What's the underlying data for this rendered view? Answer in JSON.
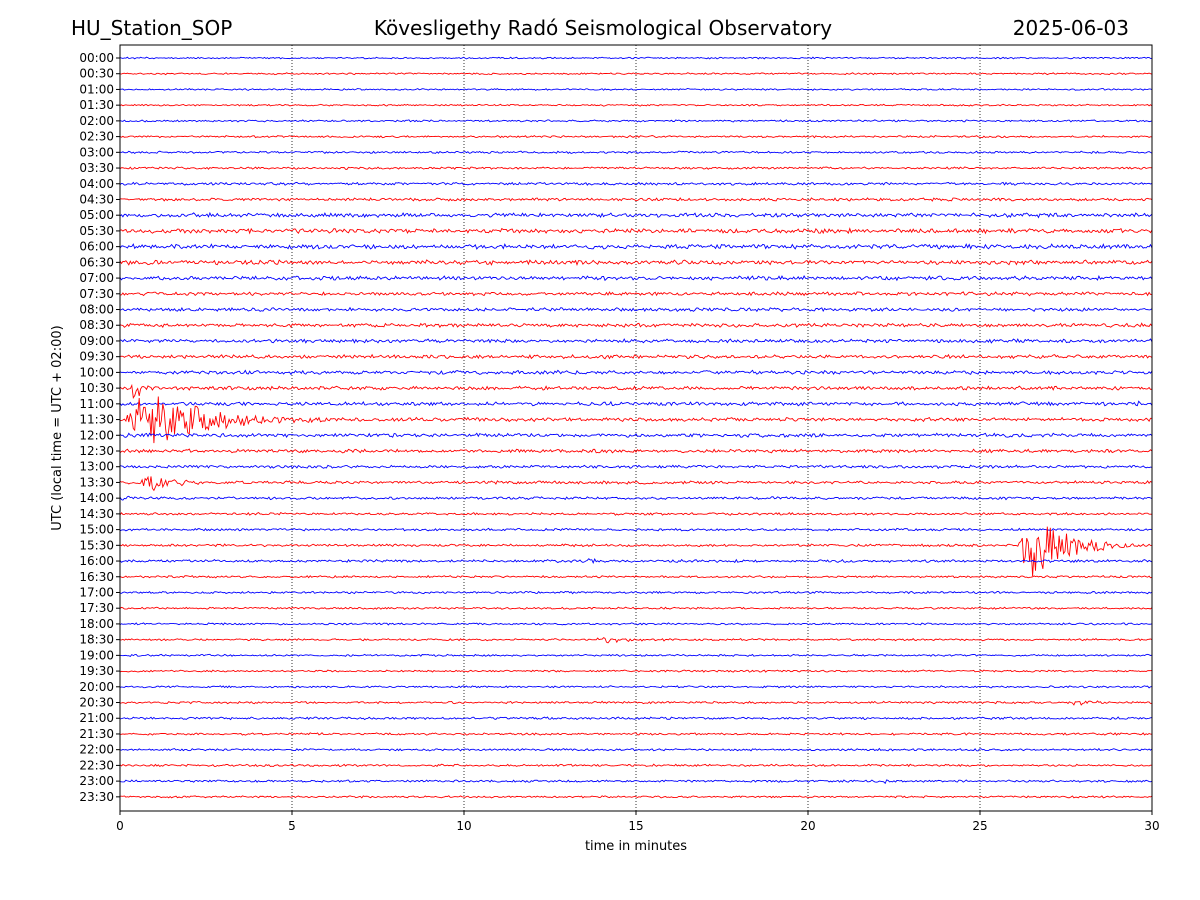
{
  "header": {
    "station": "HU_Station_SOP",
    "observatory": "Kövesligethy Radó Seismological Observatory",
    "date": "2025-06-03"
  },
  "chart_data": {
    "type": "line",
    "title": "Kövesligethy Radó Seismological Observatory",
    "xlabel": "time in minutes",
    "ylabel": "UTC (local time = UTC + 02:00)",
    "xlim": [
      0,
      30
    ],
    "x_ticks": [
      "0",
      "5",
      "10",
      "15",
      "20",
      "25",
      "30"
    ],
    "grid": "vertical dotted lines at every 5 minutes",
    "trace_colors": [
      "#0000ff",
      "#ff0000"
    ],
    "rows": [
      {
        "label": "00:00",
        "color": "#0000ff",
        "noise": 0.7,
        "events": []
      },
      {
        "label": "00:30",
        "color": "#ff0000",
        "noise": 0.7,
        "events": []
      },
      {
        "label": "01:00",
        "color": "#0000ff",
        "noise": 0.7,
        "events": []
      },
      {
        "label": "01:30",
        "color": "#ff0000",
        "noise": 0.7,
        "events": []
      },
      {
        "label": "02:00",
        "color": "#0000ff",
        "noise": 0.8,
        "events": []
      },
      {
        "label": "02:30",
        "color": "#ff0000",
        "noise": 0.8,
        "events": []
      },
      {
        "label": "03:00",
        "color": "#0000ff",
        "noise": 0.9,
        "events": []
      },
      {
        "label": "03:30",
        "color": "#ff0000",
        "noise": 0.9,
        "events": [
          {
            "t": 6.5,
            "amp": 4,
            "dur": 0.3
          }
        ]
      },
      {
        "label": "04:00",
        "color": "#0000ff",
        "noise": 1.1,
        "events": []
      },
      {
        "label": "04:30",
        "color": "#ff0000",
        "noise": 1.2,
        "events": []
      },
      {
        "label": "05:00",
        "color": "#0000ff",
        "noise": 1.7,
        "events": []
      },
      {
        "label": "05:30",
        "color": "#ff0000",
        "noise": 1.8,
        "events": []
      },
      {
        "label": "06:00",
        "color": "#0000ff",
        "noise": 1.9,
        "events": []
      },
      {
        "label": "06:30",
        "color": "#ff0000",
        "noise": 1.8,
        "events": []
      },
      {
        "label": "07:00",
        "color": "#0000ff",
        "noise": 1.6,
        "events": []
      },
      {
        "label": "07:30",
        "color": "#ff0000",
        "noise": 1.4,
        "events": []
      },
      {
        "label": "08:00",
        "color": "#0000ff",
        "noise": 1.4,
        "events": []
      },
      {
        "label": "08:30",
        "color": "#ff0000",
        "noise": 1.5,
        "events": []
      },
      {
        "label": "09:00",
        "color": "#0000ff",
        "noise": 1.5,
        "events": []
      },
      {
        "label": "09:30",
        "color": "#ff0000",
        "noise": 1.5,
        "events": []
      },
      {
        "label": "10:00",
        "color": "#0000ff",
        "noise": 1.5,
        "events": []
      },
      {
        "label": "10:30",
        "color": "#ff0000",
        "noise": 1.5,
        "events": [
          {
            "t": 0.3,
            "amp": 16,
            "dur": 0.8
          }
        ]
      },
      {
        "label": "11:00",
        "color": "#0000ff",
        "noise": 1.5,
        "events": [
          {
            "t": 23.5,
            "amp": 4,
            "dur": 0.3
          },
          {
            "t": 29.5,
            "amp": 4,
            "dur": 0.4
          }
        ]
      },
      {
        "label": "11:30",
        "color": "#ff0000",
        "noise": 1.5,
        "events": [
          {
            "t": 0.1,
            "amp": 30,
            "dur": 6.0
          }
        ]
      },
      {
        "label": "12:00",
        "color": "#0000ff",
        "noise": 1.5,
        "events": []
      },
      {
        "label": "12:30",
        "color": "#ff0000",
        "noise": 1.4,
        "events": []
      },
      {
        "label": "13:00",
        "color": "#0000ff",
        "noise": 1.2,
        "events": [
          {
            "t": 28.8,
            "amp": 4,
            "dur": 0.2
          }
        ]
      },
      {
        "label": "13:30",
        "color": "#ff0000",
        "noise": 1.2,
        "events": [
          {
            "t": 0.6,
            "amp": 10,
            "dur": 2.0
          }
        ]
      },
      {
        "label": "14:00",
        "color": "#0000ff",
        "noise": 1.1,
        "events": [
          {
            "t": 0.0,
            "amp": 4,
            "dur": 0.6
          }
        ]
      },
      {
        "label": "14:30",
        "color": "#ff0000",
        "noise": 1.0,
        "events": []
      },
      {
        "label": "15:00",
        "color": "#0000ff",
        "noise": 1.0,
        "events": []
      },
      {
        "label": "15:30",
        "color": "#ff0000",
        "noise": 1.0,
        "events": [
          {
            "t": 26.1,
            "amp": 36,
            "dur": 3.5
          }
        ]
      },
      {
        "label": "16:00",
        "color": "#0000ff",
        "noise": 1.1,
        "events": [
          {
            "t": 13.6,
            "amp": 4,
            "dur": 0.5
          }
        ]
      },
      {
        "label": "16:30",
        "color": "#ff0000",
        "noise": 0.9,
        "events": []
      },
      {
        "label": "17:00",
        "color": "#0000ff",
        "noise": 0.9,
        "events": []
      },
      {
        "label": "17:30",
        "color": "#ff0000",
        "noise": 0.8,
        "events": []
      },
      {
        "label": "18:00",
        "color": "#0000ff",
        "noise": 0.8,
        "events": []
      },
      {
        "label": "18:30",
        "color": "#ff0000",
        "noise": 0.8,
        "events": [
          {
            "t": 13.8,
            "amp": 5,
            "dur": 2.5
          }
        ]
      },
      {
        "label": "19:00",
        "color": "#0000ff",
        "noise": 0.8,
        "events": []
      },
      {
        "label": "19:30",
        "color": "#ff0000",
        "noise": 0.8,
        "events": []
      },
      {
        "label": "20:00",
        "color": "#0000ff",
        "noise": 0.8,
        "events": []
      },
      {
        "label": "20:30",
        "color": "#ff0000",
        "noise": 0.9,
        "events": [
          {
            "t": 27.5,
            "amp": 3,
            "dur": 2.0
          }
        ]
      },
      {
        "label": "21:00",
        "color": "#0000ff",
        "noise": 1.0,
        "events": []
      },
      {
        "label": "21:30",
        "color": "#ff0000",
        "noise": 0.9,
        "events": []
      },
      {
        "label": "22:00",
        "color": "#0000ff",
        "noise": 0.9,
        "events": []
      },
      {
        "label": "22:30",
        "color": "#ff0000",
        "noise": 0.9,
        "events": []
      },
      {
        "label": "23:00",
        "color": "#0000ff",
        "noise": 0.9,
        "events": [
          {
            "t": 22.2,
            "amp": 3,
            "dur": 0.2
          }
        ]
      },
      {
        "label": "23:30",
        "color": "#ff0000",
        "noise": 0.8,
        "events": []
      }
    ]
  }
}
